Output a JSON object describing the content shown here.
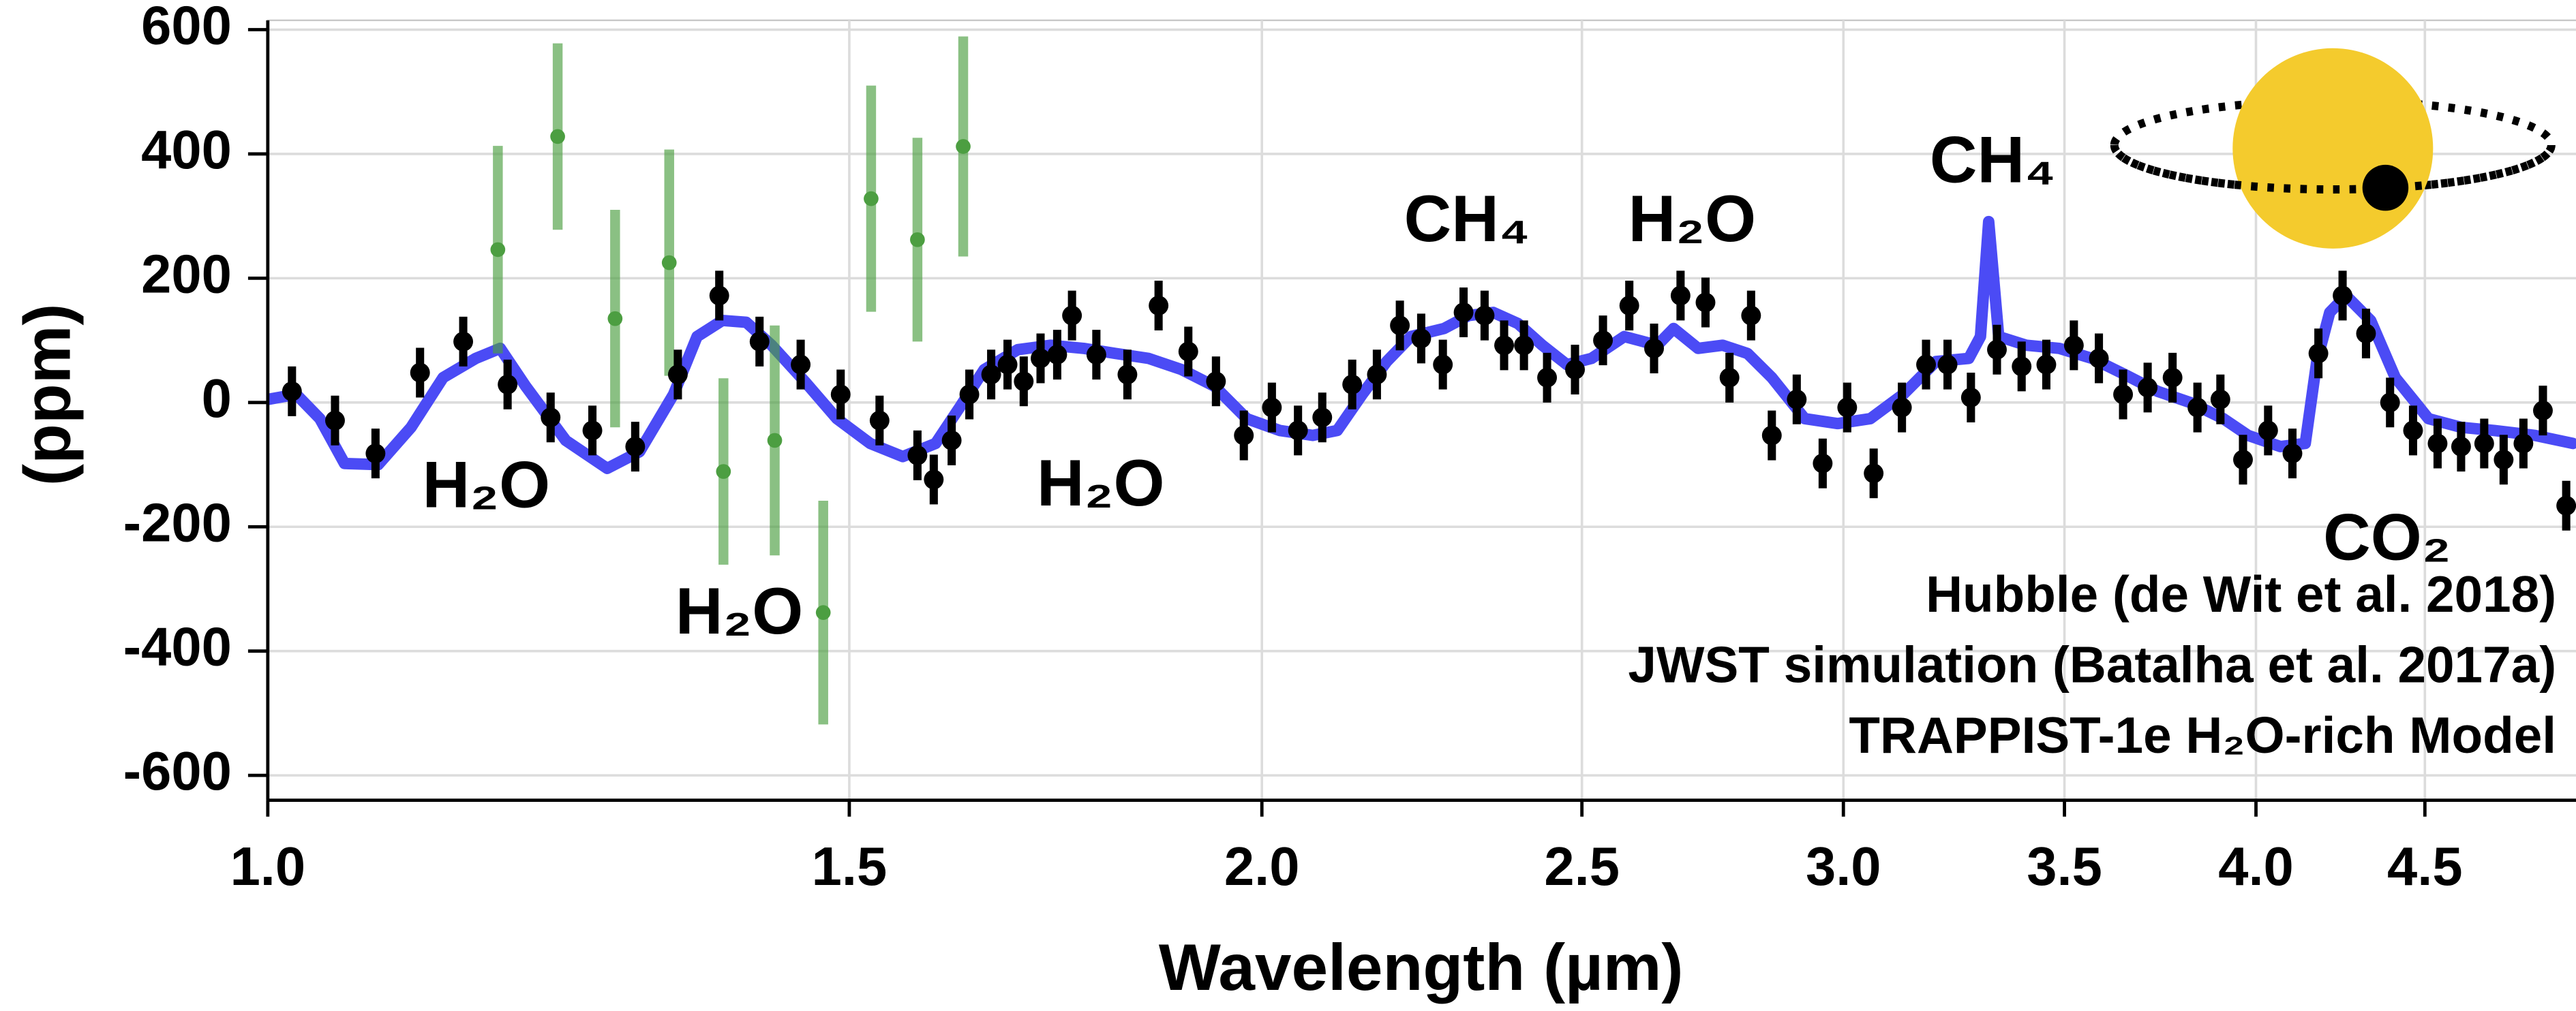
{
  "chart_data": {
    "type": "scatter",
    "x_label": "Wavelength (µm)",
    "y_label": "(ppm)",
    "xscale": "log",
    "xlim": [
      1,
      5
    ],
    "ylim": [
      -640,
      615
    ],
    "xticks": [
      {
        "value": 1,
        "label": "1.0"
      },
      1.5,
      {
        "value": 2,
        "label": "2.0"
      },
      2.5,
      {
        "value": 3,
        "label": "3.0"
      },
      3.5,
      {
        "value": 4,
        "label": "4.0"
      },
      4.5
    ],
    "yticks": [
      -600,
      -400,
      -200,
      0,
      200,
      400,
      600
    ],
    "grid": true,
    "legend": "lower right",
    "series": [
      {
        "name": "Hubble (de Wit et al. 2018)",
        "color": "#4c9e41",
        "type": "errorbar",
        "x": [
          1.174,
          1.224,
          1.274,
          1.323,
          1.374,
          1.424,
          1.473,
          1.523,
          1.573,
          1.624
        ],
        "values": [
          246,
          428,
          135,
          225,
          -111,
          -61,
          -338,
          328,
          262,
          412
        ],
        "errors": [
          167,
          150,
          175,
          182,
          150,
          185,
          180,
          182,
          164,
          177
        ]
      },
      {
        "name": "JWST simulation (Batalha et al. 2017a)",
        "color": "#000000",
        "type": "errorbar",
        "x": [
          1.017,
          1.048,
          1.078,
          1.112,
          1.146,
          1.182,
          1.218,
          1.254,
          1.292,
          1.331,
          1.37,
          1.409,
          1.45,
          1.491,
          1.532,
          1.573,
          1.591,
          1.611,
          1.631,
          1.656,
          1.675,
          1.694,
          1.714,
          1.734,
          1.752,
          1.782,
          1.821,
          1.861,
          1.9,
          1.937,
          1.975,
          2.014,
          2.051,
          2.086,
          2.13,
          2.167,
          2.202,
          2.235,
          2.269,
          2.302,
          2.336,
          2.368,
          2.401,
          2.44,
          2.488,
          2.537,
          2.584,
          2.629,
          2.678,
          2.725,
          2.771,
          2.813,
          2.854,
          2.904,
          2.957,
          3.008,
          3.064,
          3.125,
          3.178,
          3.226,
          3.279,
          3.339,
          3.397,
          3.456,
          3.523,
          3.585,
          3.646,
          3.709,
          3.774,
          3.84,
          3.902,
          3.964,
          4.034,
          4.103,
          4.178,
          4.249,
          4.319,
          4.392,
          4.463,
          4.54,
          4.615,
          4.69,
          4.754,
          4.82,
          4.886,
          4.966
        ],
        "values": [
          18,
          -29,
          -82,
          48,
          98,
          29,
          -24,
          -45,
          -71,
          45,
          172,
          98,
          61,
          13,
          -29,
          -85,
          -124,
          -61,
          13,
          45,
          61,
          34,
          71,
          77,
          140,
          77,
          45,
          156,
          82,
          34,
          -53,
          -8,
          -45,
          -24,
          29,
          45,
          124,
          103,
          61,
          145,
          140,
          92,
          92,
          40,
          53,
          100,
          156,
          87,
          172,
          161,
          40,
          140,
          -53,
          5,
          -98,
          -8,
          -114,
          -8,
          61,
          61,
          8,
          85,
          58,
          61,
          92,
          71,
          13,
          24,
          40,
          -8,
          5,
          -92,
          -45,
          -82,
          79,
          172,
          111,
          0,
          -45,
          -66,
          -71,
          -66,
          -92,
          -66,
          -13,
          -166
        ],
        "errors": [
          40,
          40,
          40,
          40,
          40,
          40,
          40,
          40,
          40,
          40,
          40,
          40,
          40,
          40,
          40,
          40,
          40,
          40,
          40,
          40,
          40,
          40,
          40,
          40,
          40,
          40,
          40,
          40,
          40,
          40,
          40,
          40,
          40,
          40,
          40,
          40,
          40,
          40,
          40,
          40,
          40,
          40,
          40,
          40,
          40,
          40,
          40,
          40,
          40,
          40,
          40,
          40,
          40,
          40,
          40,
          40,
          40,
          40,
          40,
          40,
          40,
          40,
          40,
          40,
          40,
          40,
          40,
          40,
          40,
          40,
          40,
          40,
          40,
          40,
          40,
          40,
          40,
          40,
          40,
          40,
          40,
          40,
          40,
          40,
          40,
          40
        ]
      },
      {
        "name": "TRAPPIST-1e H₂O-rich Model",
        "color": "#4b4bf5",
        "type": "line",
        "x": [
          1.0,
          1.02,
          1.037,
          1.055,
          1.08,
          1.105,
          1.13,
          1.156,
          1.176,
          1.197,
          1.231,
          1.267,
          1.296,
          1.327,
          1.349,
          1.373,
          1.396,
          1.421,
          1.454,
          1.487,
          1.522,
          1.557,
          1.593,
          1.62,
          1.648,
          1.687,
          1.726,
          1.766,
          1.806,
          1.848,
          1.891,
          1.935,
          1.979,
          2.025,
          2.072,
          2.108,
          2.145,
          2.182,
          2.219,
          2.271,
          2.31,
          2.35,
          2.391,
          2.432,
          2.474,
          2.517,
          2.575,
          2.635,
          2.665,
          2.711,
          2.758,
          2.806,
          2.854,
          2.92,
          2.988,
          3.057,
          3.128,
          3.2,
          3.274,
          3.301,
          3.32,
          3.343,
          3.408,
          3.487,
          3.568,
          3.65,
          3.735,
          3.821,
          3.91,
          3.978,
          4.069,
          4.14,
          4.173,
          4.211,
          4.259,
          4.333,
          4.408,
          4.511,
          4.615,
          4.722,
          4.859,
          4.989
        ],
        "values": [
          5,
          13,
          -26,
          -98,
          -100,
          -40,
          40,
          71,
          87,
          26,
          -61,
          -106,
          -79,
          13,
          106,
          132,
          129,
          92,
          34,
          -26,
          -66,
          -87,
          -66,
          -8,
          53,
          85,
          92,
          87,
          79,
          71,
          53,
          26,
          -26,
          -45,
          -53,
          -45,
          13,
          66,
          106,
          119,
          140,
          145,
          127,
          92,
          61,
          71,
          106,
          92,
          119,
          87,
          92,
          79,
          40,
          -26,
          -34,
          -26,
          13,
          66,
          71,
          106,
          291,
          106,
          92,
          87,
          71,
          45,
          18,
          0,
          -26,
          -53,
          -71,
          -66,
          66,
          145,
          172,
          132,
          40,
          -26,
          -40,
          -45,
          -53,
          -66
        ]
      }
    ],
    "annotations": [
      {
        "text": "H₂O"
      },
      {
        "text": "H₂O"
      },
      {
        "text": "H₂O"
      },
      {
        "text": "CH₄"
      },
      {
        "text": "H₂O"
      },
      {
        "text": "CH₄"
      },
      {
        "text": "CO₂"
      }
    ]
  }
}
